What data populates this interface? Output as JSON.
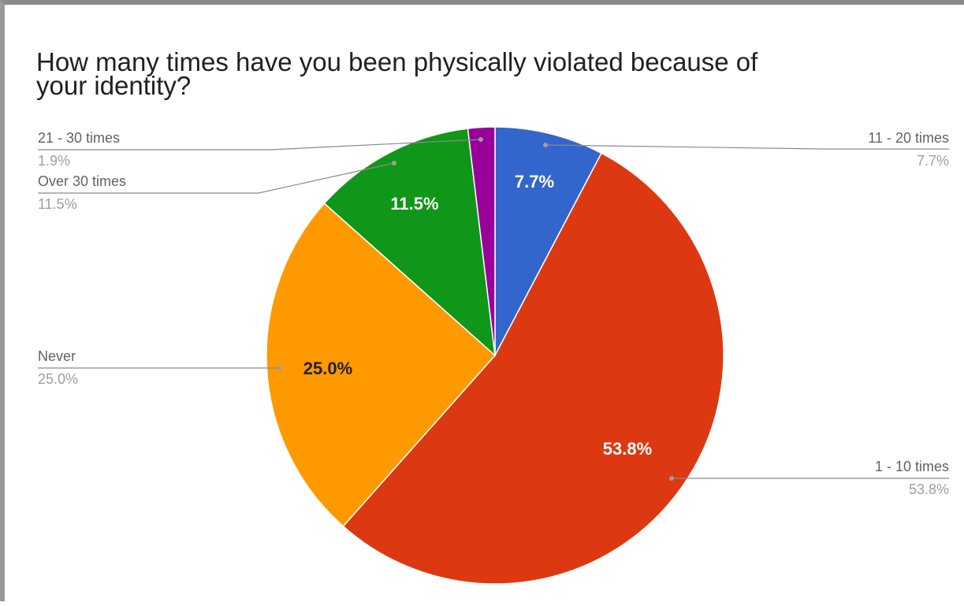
{
  "chart_data": {
    "type": "pie",
    "title_lines": [
      "How many times have you been physically violated because of",
      "your identity?"
    ],
    "slices": [
      {
        "name": "11 - 20 times",
        "value": 7.7,
        "label": "7.7%",
        "color": "#3366cc",
        "label_color": "#ffffff"
      },
      {
        "name": "1 - 10 times",
        "value": 53.8,
        "label": "53.8%",
        "color": "#dc3912",
        "label_color": "#ffffff"
      },
      {
        "name": "Never",
        "value": 25.0,
        "label": "25.0%",
        "color": "#ff9900",
        "label_color": "#202124"
      },
      {
        "name": "Over 30 times",
        "value": 11.5,
        "label": "11.5%",
        "color": "#109618",
        "label_color": "#ffffff"
      },
      {
        "name": "21 - 30 times",
        "value": 1.9,
        "label": "1.9%",
        "color": "#990099",
        "label_color": "#ffffff"
      }
    ],
    "start_angle_deg": 0,
    "direction": "clockwise",
    "legend": "labeled"
  }
}
